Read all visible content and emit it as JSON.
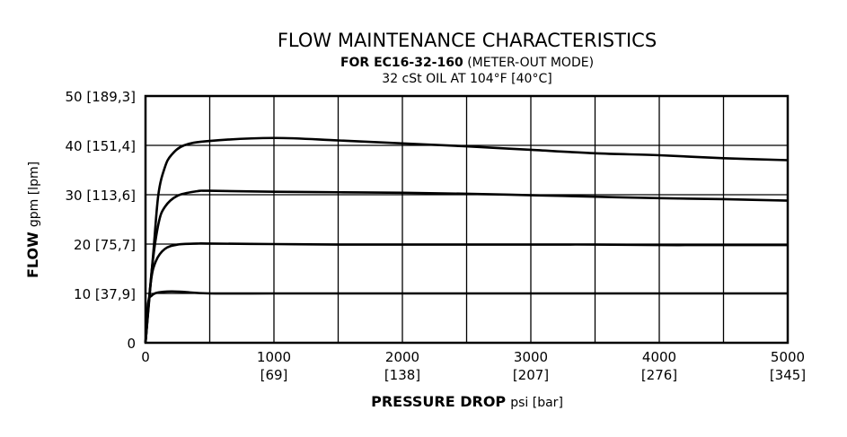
{
  "chart_data": {
    "type": "line",
    "title": "FLOW MAINTENANCE CHARACTERISTICS",
    "subtitle_bold": "FOR EC16-32-160",
    "subtitle_rest": "(METER-OUT MODE)",
    "subtitle2": "32 cSt OIL AT 104°F [40°C]",
    "xlabel_bold": "PRESSURE DROP",
    "xlabel_rest": "psi [bar]",
    "ylabel_bold": "FLOW",
    "ylabel_rest": "gpm [lpm]",
    "xlim": [
      0,
      5000
    ],
    "ylim": [
      0,
      50
    ],
    "grid": true,
    "x_ticks": [
      {
        "value": 0,
        "label": "0",
        "sub": ""
      },
      {
        "value": 1000,
        "label": "1000",
        "sub": "[69]"
      },
      {
        "value": 2000,
        "label": "2000",
        "sub": "[138]"
      },
      {
        "value": 3000,
        "label": "3000",
        "sub": "[207]"
      },
      {
        "value": 4000,
        "label": "4000",
        "sub": "[276]"
      },
      {
        "value": 5000,
        "label": "5000",
        "sub": "[345]"
      }
    ],
    "y_ticks": [
      {
        "value": 0,
        "label": "0"
      },
      {
        "value": 10,
        "label": "10 [37,9]"
      },
      {
        "value": 20,
        "label": "20 [75,7]"
      },
      {
        "value": 30,
        "label": "30 [113,6]"
      },
      {
        "value": 40,
        "label": "40 [151,4]"
      },
      {
        "value": 50,
        "label": "50 [189,3]"
      }
    ],
    "series": [
      {
        "x": [
          0,
          20,
          50,
          100,
          200,
          300,
          500,
          1000,
          1500,
          2000,
          2500,
          3000,
          3500,
          4000,
          4500,
          5000
        ],
        "y": [
          0,
          8,
          9.6,
          10.2,
          10.4,
          10.3,
          10.0,
          10.0,
          10.0,
          10.0,
          10.0,
          10.0,
          10.0,
          10.0,
          10.0,
          10.0
        ]
      },
      {
        "x": [
          0,
          40,
          80,
          150,
          250,
          400,
          500,
          1000,
          1500,
          2000,
          2500,
          3000,
          3500,
          4000,
          4500,
          5000
        ],
        "y": [
          0,
          12,
          16.5,
          19,
          19.9,
          20.1,
          20.1,
          20.0,
          19.9,
          19.9,
          19.9,
          19.9,
          19.9,
          19.8,
          19.8,
          19.8
        ]
      },
      {
        "x": [
          0,
          50,
          100,
          150,
          250,
          400,
          500,
          1000,
          1500,
          2000,
          2500,
          3000,
          3500,
          4000,
          4500,
          5000
        ],
        "y": [
          0,
          15,
          24,
          27.5,
          29.8,
          30.7,
          30.8,
          30.6,
          30.5,
          30.4,
          30.2,
          29.9,
          29.6,
          29.3,
          29.1,
          28.8
        ]
      },
      {
        "x": [
          0,
          60,
          100,
          150,
          200,
          300,
          500,
          1000,
          1500,
          2000,
          2500,
          3000,
          3500,
          4000,
          4500,
          5000
        ],
        "y": [
          0,
          18,
          30,
          35.5,
          38,
          40,
          40.9,
          41.5,
          41,
          40.4,
          39.8,
          39.1,
          38.4,
          38.0,
          37.4,
          37.0
        ]
      }
    ]
  }
}
